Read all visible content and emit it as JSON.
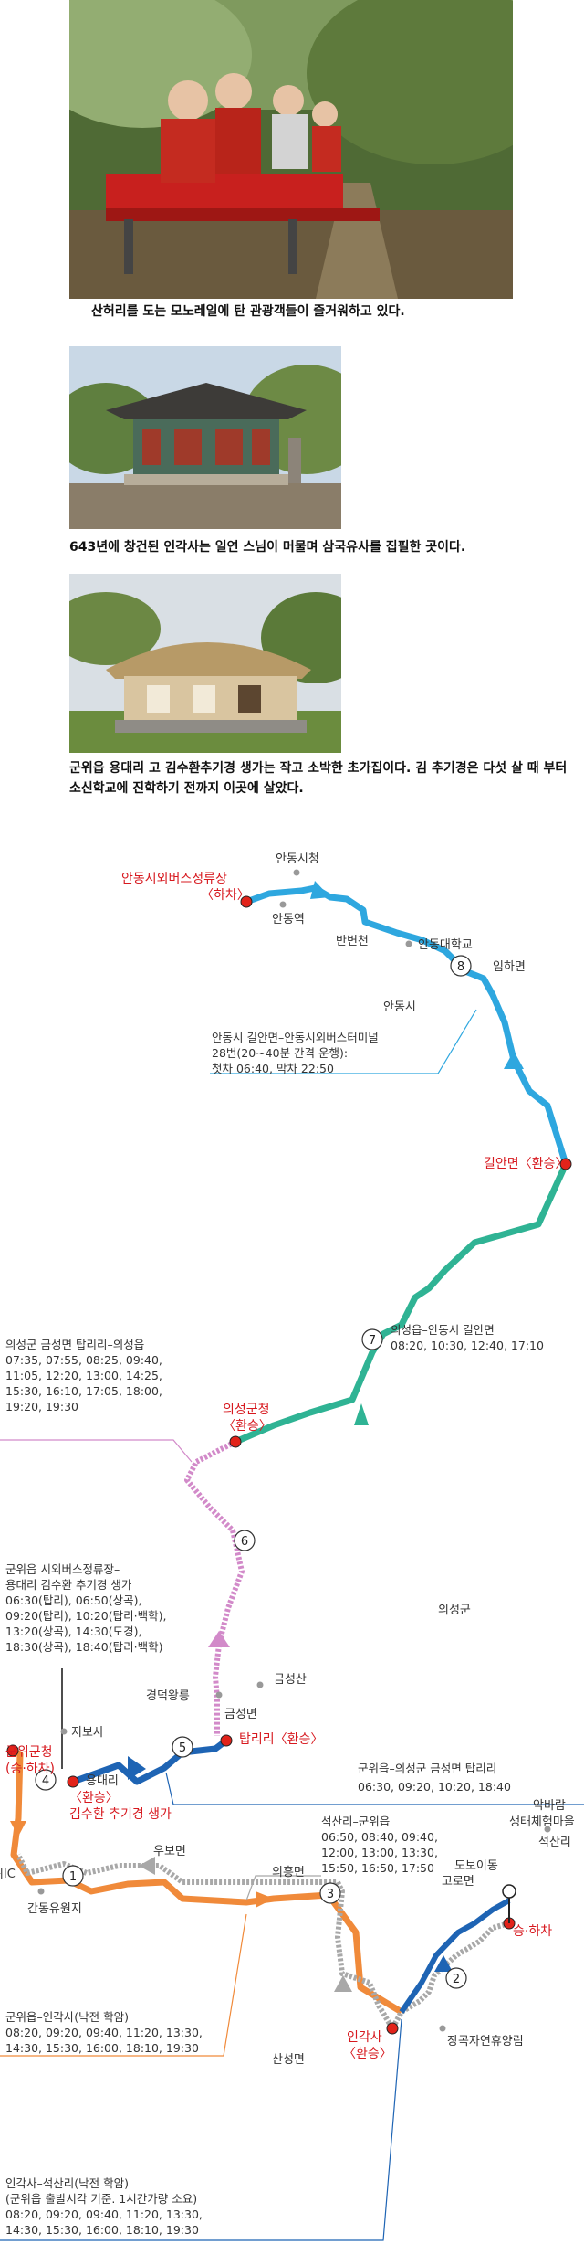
{
  "photos": [
    {
      "caption": "산허리를 도는 모노레일에 탄 관광객들이 즐거워하고 있다."
    },
    {
      "caption": "643년에 창건된 인각사는 일연 스님이 머물며 삼국유사를 집필한 곳이다."
    },
    {
      "caption": "군위읍 용대리 고 김수환추기경 생가는 작고 소박한 초가집이다. 김 추기경은 다섯 살 때 부터 소신학교에 진학하기 전까지 이곳에 살았다."
    }
  ],
  "map": {
    "places": {
      "andong_terminal": "안동시외버스정류장",
      "andong_terminal_sub": "〈하차〉",
      "andong_city_hall": "안동시청",
      "andong_station": "안동역",
      "banbyeoncheon": "반변천",
      "andong_univ": "안동대학교",
      "imhamyeon": "임하면",
      "andong_si": "안동시",
      "gilanmyeon": "길안면〈환승〉",
      "uiseong_office": "의성군청",
      "uiseong_office_sub": "〈환승〉",
      "uiseong_gun": "의성군",
      "geumseongsan": "금성산",
      "geumseongmyeon": "금성면",
      "gyeongdeok": "경덕왕릉",
      "tapri": "탑리리〈환승〉",
      "jibosa": "지보사",
      "yongdaeri": "용대리",
      "gunwi_office": "군위군청",
      "gunwi_office_sub": "(승·하차)",
      "transfer": "〈환승〉",
      "cardinal_house": "김수환 추기경 생가",
      "gunwi_ic": "군위IC",
      "ganfdong": "간동유원지",
      "ubomyeon": "우보면",
      "uihungmyeon": "의흥면",
      "seoksanri": "석산리",
      "akbaram": "악바람",
      "experience": "생태체험마을",
      "doboidong": "도보이동",
      "goromyeon": "고로면",
      "boarding": "승·하차",
      "ingaksa": "인각사",
      "ingaksa_sub": "〈환승〉",
      "janggok": "장곡자연휴양림",
      "sanseongmyeon": "산성면"
    },
    "step_numbers": [
      "1",
      "2",
      "3",
      "4",
      "5",
      "6",
      "7",
      "8"
    ],
    "notes": {
      "andong_bus": [
        "안동시 길안면–안동시외버스터미널",
        "28번(20~40분 간격 운행):",
        "첫차 06:40, 막차 22:50"
      ],
      "uiseong_andong": [
        "의성읍–안동시 길안면",
        "08:20, 10:30, 12:40, 17:10"
      ],
      "tapri_uiseong": [
        "의성군 금성면 탑리리–의성읍",
        "07:35, 07:55, 08:25, 09:40,",
        "11:05, 12:20, 13:00, 14:25,",
        "15:30, 16:10, 17:05, 18:00,",
        "19:20, 19:30"
      ],
      "gunwi_terminal": [
        "군위읍 시외버스정류장–",
        "용대리 김수환 추기경 생가",
        "06:30(탑리), 06:50(상곡),",
        "09:20(탑리), 10:20(탑리·백학),",
        "13:20(상곡), 14:30(도경),",
        "18:30(상곡), 18:40(탑리·백학)"
      ],
      "gunwi_tapri": [
        "군위읍–의성군 금성면 탑리리",
        "06:30, 09:20, 10:20, 18:40"
      ],
      "seoksan_gunwi": [
        "석산리–군위읍",
        "06:50, 08:40, 09:40,",
        "12:00, 13:00, 13:30,",
        "15:50, 16:50, 17:50"
      ],
      "gunwi_ingaksa": [
        "군위읍–인각사(낙전 학암)",
        "08:20, 09:20, 09:40, 11:20, 13:30,",
        "14:30, 15:30, 16:00, 18:10, 19:30"
      ],
      "ingaksa_seoksan": [
        "인각사–석산리(낙전 학암)",
        "(군위읍 출발시각 기준. 1시간가량 소요)",
        "08:20, 09:20, 09:40, 11:20, 13:30,",
        "14:30, 15:30, 16:00, 18:10, 19:30"
      ]
    },
    "colors": {
      "blue": "#2ea7df",
      "teal": "#2fb394",
      "pink": "#d28ac9",
      "darkblue": "#1e64b4",
      "orange": "#f08a3a",
      "gray": "#a8a8a8",
      "red": "#e2231a"
    }
  }
}
